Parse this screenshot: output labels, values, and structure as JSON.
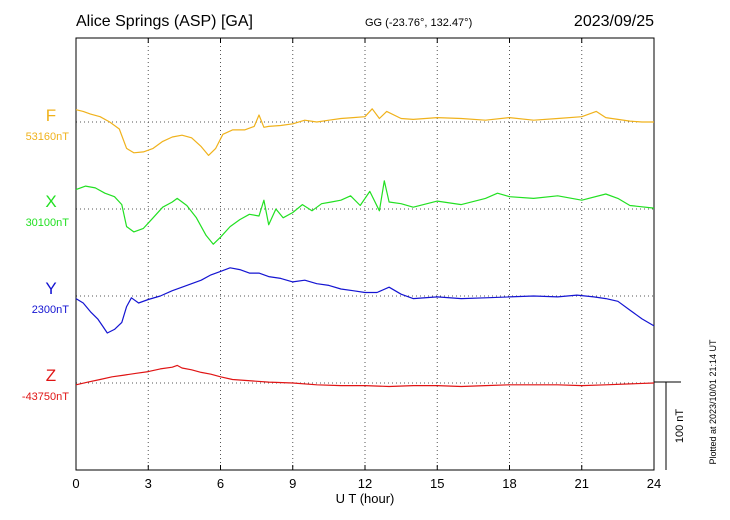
{
  "header": {
    "station": "Alice Springs (ASP)  [GA]",
    "coords": "GG (-23.76°, 132.47°)",
    "date": "2023/09/25"
  },
  "plotted_note": "Plotted at 2023/10/01 21:14 UT",
  "scale_label": "100 nT",
  "colors": {
    "F": "#f0b21c",
    "X": "#22e022",
    "Y": "#1414d2",
    "Z": "#e01414"
  },
  "chart_data": {
    "type": "line",
    "title": "Alice Springs (ASP)  [GA]",
    "xlabel": "U T (hour)",
    "xlim": [
      0,
      24
    ],
    "x_ticks": [
      "0",
      "3",
      "6",
      "9",
      "12",
      "15",
      "18",
      "21",
      "24"
    ],
    "scale_nT": 100,
    "grid": true,
    "series": [
      {
        "name": "F",
        "baseline": "53160nT",
        "baseline_value": 53160,
        "x": [
          0,
          0.3,
          0.6,
          1,
          1.4,
          1.8,
          2.1,
          2.4,
          2.8,
          3.2,
          3.6,
          4,
          4.4,
          4.8,
          5.2,
          5.5,
          5.8,
          6.1,
          6.5,
          7,
          7.4,
          7.6,
          7.8,
          8,
          8.5,
          9,
          9.5,
          10,
          10.5,
          11,
          11.5,
          12,
          12.3,
          12.6,
          12.9,
          13.5,
          14,
          15,
          16,
          17,
          18,
          19,
          20,
          21,
          21.6,
          22,
          22.5,
          23,
          23.5,
          24
        ],
        "values": [
          14,
          12,
          9,
          6,
          0,
          -8,
          -30,
          -35,
          -34,
          -30,
          -22,
          -17,
          -15,
          -18,
          -28,
          -38,
          -30,
          -14,
          -9,
          -9,
          -5,
          8,
          -6,
          -5,
          -4,
          -2,
          2,
          0,
          2,
          4,
          5,
          6,
          15,
          4,
          12,
          4,
          3,
          5,
          4,
          2,
          5,
          2,
          4,
          6,
          12,
          5,
          3,
          1,
          0,
          0
        ]
      },
      {
        "name": "X",
        "baseline": "30100nT",
        "baseline_value": 30100,
        "x": [
          0,
          0.4,
          0.8,
          1.2,
          1.6,
          1.9,
          2.1,
          2.4,
          2.8,
          3.2,
          3.6,
          4,
          4.2,
          4.6,
          5,
          5.4,
          5.7,
          6,
          6.4,
          6.8,
          7.2,
          7.6,
          7.8,
          8,
          8.3,
          8.6,
          9,
          9.4,
          9.8,
          10.2,
          10.6,
          11,
          11.4,
          11.8,
          12.2,
          12.6,
          12.8,
          13,
          13.5,
          14,
          15,
          16,
          17,
          17.5,
          18,
          19,
          20,
          21,
          22,
          22.5,
          23,
          24
        ],
        "values": [
          22,
          26,
          24,
          18,
          14,
          5,
          -20,
          -26,
          -22,
          -10,
          2,
          8,
          12,
          4,
          -10,
          -30,
          -40,
          -32,
          -20,
          -12,
          -6,
          -8,
          10,
          -18,
          0,
          -10,
          -4,
          5,
          -2,
          6,
          8,
          10,
          15,
          4,
          20,
          -2,
          32,
          8,
          6,
          2,
          9,
          5,
          12,
          18,
          14,
          12,
          15,
          10,
          17,
          12,
          4,
          1
        ]
      },
      {
        "name": "Y",
        "baseline": "2300nT",
        "baseline_value": 2300,
        "x": [
          0,
          0.3,
          0.6,
          0.9,
          1.1,
          1.3,
          1.6,
          1.9,
          2.1,
          2.3,
          2.6,
          3,
          3.5,
          4,
          4.4,
          4.8,
          5.2,
          5.6,
          6,
          6.4,
          6.8,
          7.2,
          7.6,
          8,
          8.5,
          9,
          9.5,
          10,
          10.5,
          11,
          11.5,
          12,
          12.5,
          13,
          13.5,
          14,
          15,
          16,
          17,
          18,
          19,
          20,
          20.8,
          21.5,
          22,
          22.5,
          23,
          23.5,
          24
        ],
        "values": [
          -3,
          -8,
          -18,
          -26,
          -34,
          -42,
          -38,
          -30,
          -12,
          -2,
          -8,
          -4,
          0,
          6,
          10,
          14,
          18,
          24,
          28,
          32,
          30,
          26,
          26,
          22,
          20,
          16,
          18,
          14,
          12,
          8,
          6,
          4,
          4,
          10,
          2,
          -3,
          -1,
          -3,
          -2,
          -1,
          0,
          -1,
          1,
          -1,
          -3,
          -6,
          -16,
          -26,
          -34
        ]
      },
      {
        "name": "Z",
        "baseline": "-43750nT",
        "baseline_value": -43750,
        "x": [
          0,
          0.5,
          1,
          1.5,
          2,
          2.5,
          3,
          3.5,
          4,
          4.2,
          4.4,
          4.8,
          5.2,
          5.6,
          6,
          6.5,
          7,
          8,
          9,
          10,
          11,
          12,
          13,
          14,
          15,
          16,
          17,
          18,
          19,
          20,
          21,
          22,
          23,
          24
        ],
        "values": [
          -2,
          1,
          4,
          7,
          9,
          11,
          13,
          16,
          18,
          20,
          17,
          15,
          12,
          10,
          7,
          4,
          3,
          1,
          0,
          -2,
          -3,
          -3,
          -4,
          -3,
          -3,
          -4,
          -3,
          -2,
          -2,
          -2,
          -3,
          -2,
          -1,
          0
        ]
      }
    ]
  }
}
